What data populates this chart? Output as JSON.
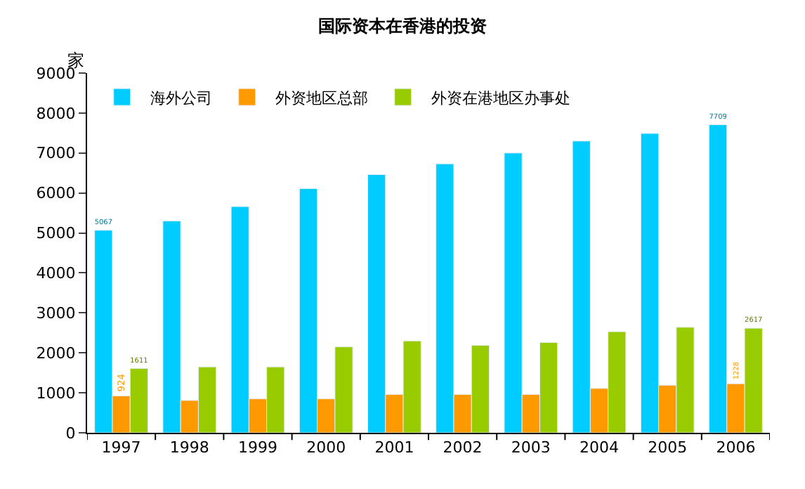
{
  "chart_data": {
    "type": "bar",
    "title": "国际资本在香港的投资",
    "ylabel": "家",
    "categories": [
      "1997",
      "1998",
      "1999",
      "2000",
      "2001",
      "2002",
      "2003",
      "2004",
      "2005",
      "2006"
    ],
    "series": [
      {
        "name": "海外公司",
        "color": "#00ccff",
        "values": [
          5067,
          5300,
          5660,
          6110,
          6460,
          6730,
          7000,
          7300,
          7490,
          7709
        ],
        "value_labels": [
          "5067",
          null,
          null,
          null,
          null,
          null,
          null,
          null,
          null,
          "7709"
        ]
      },
      {
        "name": "外资地区总部",
        "color": "#ff9900",
        "values": [
          924,
          810,
          850,
          850,
          960,
          960,
          960,
          1110,
          1190,
          1228
        ],
        "value_labels": [
          "924",
          null,
          null,
          null,
          null,
          null,
          null,
          null,
          null,
          "1228"
        ]
      },
      {
        "name": "外资在港地区办事处",
        "color": "#99cc00",
        "values": [
          1611,
          1650,
          1650,
          2150,
          2300,
          2190,
          2260,
          2530,
          2640,
          2617
        ],
        "value_labels": [
          "1611",
          null,
          null,
          null,
          null,
          null,
          null,
          null,
          null,
          "2617"
        ]
      }
    ],
    "ylim": [
      0,
      9000
    ],
    "yticks": [
      0,
      1000,
      2000,
      3000,
      4000,
      5000,
      6000,
      7000,
      8000,
      9000
    ],
    "grid": false,
    "legend": "top left"
  }
}
